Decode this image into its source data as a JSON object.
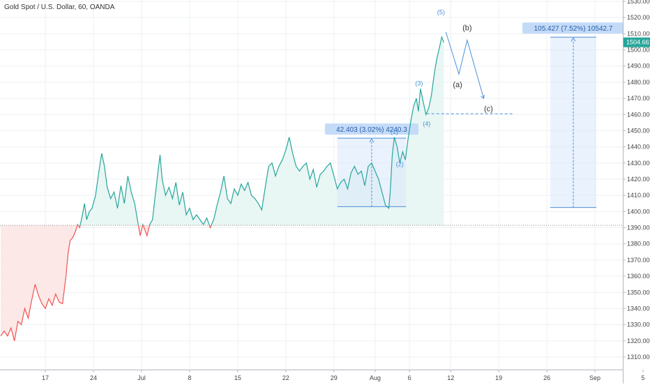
{
  "title": "Gold Spot / U.S. Dollar, 60, OANDA",
  "colors": {
    "up": "#26a69a",
    "down": "#ef5350",
    "fill_up": "#e8f6f4",
    "fill_down": "#fde8e8",
    "grid": "#eef0f3",
    "axis_text": "#444444",
    "annotation": "#4a90d9",
    "range_fill": "#d8e8fb",
    "range_label_bg": "#c4dbf8",
    "wave_label": "#333333",
    "baseline": "#888888"
  },
  "chart_data": {
    "type": "line",
    "x_axis": {
      "labels": [
        "17",
        "24",
        "Jul",
        "8",
        "15",
        "22",
        "29",
        "Aug",
        "6",
        "12",
        "19",
        "26",
        "Sep",
        "5"
      ],
      "positions": [
        -5,
        2,
        9,
        16,
        23,
        30,
        37,
        43,
        48,
        54,
        61,
        68,
        75,
        82
      ]
    },
    "y_axis": {
      "ticks": [
        1310,
        1320,
        1330,
        1340,
        1350,
        1360,
        1370,
        1380,
        1390,
        1400,
        1410,
        1420,
        1430,
        1440,
        1450,
        1460,
        1470,
        1480,
        1490,
        1500,
        1510,
        1520,
        1530
      ],
      "tick_labels": [
        "1310.000",
        "1320.000",
        "1330.000",
        "1340.000",
        "1350.000",
        "1360.000",
        "1370.000",
        "1380.000",
        "1390.000",
        "1400.000",
        "1410.000",
        "1420.000",
        "1430.000",
        "1440.000",
        "1450.000",
        "1460.000",
        "1470.000",
        "1480.000",
        "1490.000",
        "1500.000",
        "1510.000",
        "1520.000",
        "1530.000"
      ],
      "range": [
        1305,
        1532
      ]
    },
    "baseline": 1391.5,
    "last_price": 1504.661,
    "last_price_label": "1504.661",
    "series": [
      {
        "points": [
          [
            -11.5,
            1323
          ],
          [
            -11,
            1326
          ],
          [
            -10.5,
            1323
          ],
          [
            -10,
            1328
          ],
          [
            -9.5,
            1320
          ],
          [
            -9,
            1332
          ],
          [
            -8.5,
            1330
          ],
          [
            -8,
            1340
          ],
          [
            -7.5,
            1334
          ],
          [
            -7,
            1345
          ],
          [
            -6.5,
            1355
          ],
          [
            -6,
            1348
          ],
          [
            -5.5,
            1343
          ],
          [
            -5,
            1340
          ],
          [
            -4.5,
            1346
          ],
          [
            -4,
            1342
          ],
          [
            -3.5,
            1349
          ],
          [
            -3,
            1344
          ],
          [
            -2.5,
            1343
          ],
          [
            -2,
            1360
          ],
          [
            -1.7,
            1374
          ],
          [
            -1.4,
            1382
          ],
          [
            -1,
            1384
          ],
          [
            -0.6,
            1388
          ],
          [
            -0.3,
            1392
          ],
          [
            0,
            1390
          ],
          [
            0.4,
            1398
          ],
          [
            0.7,
            1405
          ],
          [
            1,
            1395
          ],
          [
            1.4,
            1400
          ],
          [
            1.8,
            1402
          ],
          [
            2.3,
            1410
          ],
          [
            2.8,
            1425
          ],
          [
            3.2,
            1436
          ],
          [
            3.6,
            1428
          ],
          [
            4,
            1415
          ],
          [
            4.5,
            1408
          ],
          [
            5,
            1412
          ],
          [
            5.5,
            1402
          ],
          [
            6,
            1416
          ],
          [
            6.5,
            1405
          ],
          [
            7,
            1422
          ],
          [
            7.5,
            1412
          ],
          [
            8,
            1405
          ],
          [
            8.4,
            1395
          ],
          [
            8.8,
            1385
          ],
          [
            9.2,
            1392
          ],
          [
            9.8,
            1385
          ],
          [
            10.2,
            1392
          ],
          [
            10.6,
            1395
          ],
          [
            11,
            1410
          ],
          [
            11.4,
            1425
          ],
          [
            11.7,
            1435
          ],
          [
            12,
            1420
          ],
          [
            12.5,
            1410
          ],
          [
            13,
            1415
          ],
          [
            13.5,
            1408
          ],
          [
            14,
            1418
          ],
          [
            14.5,
            1404
          ],
          [
            15,
            1412
          ],
          [
            15.5,
            1398
          ],
          [
            16,
            1402
          ],
          [
            16.5,
            1395
          ],
          [
            17,
            1398
          ],
          [
            17.5,
            1395
          ],
          [
            18,
            1392
          ],
          [
            18.5,
            1396
          ],
          [
            19,
            1390
          ],
          [
            19.5,
            1395
          ],
          [
            20,
            1404
          ],
          [
            20.5,
            1412
          ],
          [
            21,
            1422
          ],
          [
            21.5,
            1408
          ],
          [
            22,
            1405
          ],
          [
            22.5,
            1414
          ],
          [
            23,
            1410
          ],
          [
            23.5,
            1417
          ],
          [
            24,
            1413
          ],
          [
            24.5,
            1418
          ],
          [
            25,
            1410
          ],
          [
            25.5,
            1408
          ],
          [
            26,
            1405
          ],
          [
            26.5,
            1401
          ],
          [
            27,
            1415
          ],
          [
            27.5,
            1428
          ],
          [
            28,
            1430
          ],
          [
            28.5,
            1422
          ],
          [
            29,
            1428
          ],
          [
            29.5,
            1432
          ],
          [
            30,
            1438
          ],
          [
            30.5,
            1446
          ],
          [
            31,
            1436
          ],
          [
            31.5,
            1428
          ],
          [
            32,
            1425
          ],
          [
            32.5,
            1428
          ],
          [
            33,
            1430
          ],
          [
            33.5,
            1420
          ],
          [
            34,
            1426
          ],
          [
            34.5,
            1415
          ],
          [
            35,
            1423
          ],
          [
            35.5,
            1425
          ],
          [
            36,
            1428
          ],
          [
            36.5,
            1430
          ],
          [
            37,
            1422
          ],
          [
            37.5,
            1414
          ],
          [
            38,
            1418
          ],
          [
            38.5,
            1420
          ],
          [
            39,
            1414
          ],
          [
            39.5,
            1424
          ],
          [
            40,
            1428
          ],
          [
            40.5,
            1423
          ],
          [
            41,
            1425
          ],
          [
            41.5,
            1416
          ],
          [
            42,
            1428
          ],
          [
            42.5,
            1430
          ],
          [
            43,
            1425
          ],
          [
            43.5,
            1420
          ],
          [
            44,
            1412
          ],
          [
            44.5,
            1404
          ],
          [
            45,
            1402
          ],
          [
            45.2,
            1412
          ],
          [
            45.5,
            1435
          ],
          [
            45.8,
            1446
          ],
          [
            46.2,
            1440
          ],
          [
            46.6,
            1430
          ],
          [
            47,
            1437
          ],
          [
            47.4,
            1432
          ],
          [
            47.8,
            1445
          ],
          [
            48.2,
            1456
          ],
          [
            48.6,
            1465
          ],
          [
            49,
            1470
          ],
          [
            49.3,
            1462
          ],
          [
            49.6,
            1476
          ],
          [
            50,
            1468
          ],
          [
            50.4,
            1460
          ],
          [
            50.8,
            1464
          ],
          [
            51.2,
            1472
          ],
          [
            51.6,
            1485
          ],
          [
            52,
            1495
          ],
          [
            52.4,
            1502
          ],
          [
            52.7,
            1508
          ],
          [
            53,
            1504.661
          ]
        ]
      }
    ],
    "wave_labels": [
      {
        "text": "(1)",
        "x": 45.8,
        "y": 1448
      },
      {
        "text": "(2)",
        "x": 46.6,
        "y": 1428
      },
      {
        "text": "(3)",
        "x": 49.4,
        "y": 1478
      },
      {
        "text": "(4)",
        "x": 50.5,
        "y": 1453
      },
      {
        "text": "(5)",
        "x": 52.6,
        "y": 1522
      },
      {
        "text": "(a)",
        "x": 55,
        "y": 1477
      },
      {
        "text": "(b)",
        "x": 56.4,
        "y": 1512
      },
      {
        "text": "(c)",
        "x": 59.5,
        "y": 1462
      }
    ],
    "projection_path": [
      [
        53.3,
        1511
      ],
      [
        55.2,
        1485
      ],
      [
        56.4,
        1506
      ],
      [
        58.8,
        1470
      ]
    ],
    "support_level": {
      "price": 1460.5,
      "from": 50.5,
      "to": 63
    },
    "ranges": [
      {
        "x1": 37.5,
        "x2": 47.5,
        "y1": 1403,
        "y2": 1445.4,
        "label": "42.403 (3.02%) 4240.3"
      },
      {
        "x1": 68.5,
        "x2": 75.2,
        "y1": 1402.5,
        "y2": 1507.9,
        "label": "105.427 (7.52%) 10542.7"
      }
    ]
  }
}
